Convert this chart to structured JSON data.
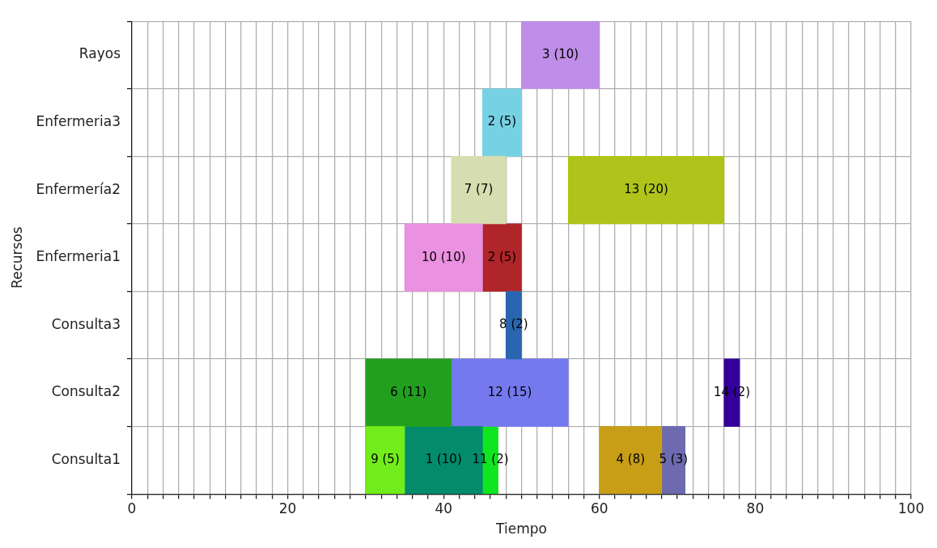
{
  "chart_data": {
    "type": "bar",
    "orientation": "horizontal",
    "xlabel": "Tiempo",
    "ylabel": "Recursos",
    "categories": [
      "Rayos",
      "Enfermeria3",
      "Enfermería2",
      "Enfermeria1",
      "Consulta3",
      "Consulta2",
      "Consulta1"
    ],
    "series": [
      {
        "values": [
          10,
          5,
          7,
          10,
          2,
          11,
          5
        ],
        "base": [
          50,
          45,
          41,
          35,
          48,
          30,
          30
        ],
        "colors": [
          "#be8ee8",
          "#76d1e3",
          "#d6ddb0",
          "#ea91e0",
          "#2a65b0",
          "#239f1f",
          "#72ec1a"
        ],
        "value_labels": [
          "3 (10)",
          "2 (5)",
          "7 (7)",
          "10 (10)",
          "8 (2)",
          "6 (11)",
          "9 (5)"
        ]
      },
      {
        "values": [
          null,
          null,
          20,
          5,
          null,
          15,
          10
        ],
        "base": [
          null,
          null,
          56,
          45,
          null,
          41,
          35
        ],
        "colors": [
          "#be8ee8",
          "#76d1e3",
          "#aec41a",
          "#b0252a",
          "#2a65b0",
          "#7579ee",
          "#038b6c"
        ],
        "value_labels": [
          null,
          null,
          "13 (20)",
          "2 (5)",
          null,
          "12 (15)",
          "1 (10)"
        ]
      },
      {
        "values": [
          null,
          null,
          null,
          null,
          null,
          2,
          2
        ],
        "base": [
          null,
          null,
          null,
          null,
          null,
          76,
          45
        ],
        "colors": [
          "#be8ee8",
          "#76d1e3",
          "#aec41a",
          "#b0252a",
          "#2a65b0",
          "#33009a",
          "#10e61f"
        ],
        "value_labels": [
          null,
          null,
          null,
          null,
          null,
          "14 (2)",
          "11 (2)"
        ]
      },
      {
        "values": [
          null,
          null,
          null,
          null,
          null,
          null,
          8
        ],
        "base": [
          null,
          null,
          null,
          null,
          null,
          null,
          60
        ],
        "colors": [
          "#be8ee8",
          "#76d1e3",
          "#aec41a",
          "#b0252a",
          "#2a65b0",
          "#33009a",
          "#c89e17"
        ],
        "value_labels": [
          null,
          null,
          null,
          null,
          null,
          null,
          "4 (8)"
        ]
      },
      {
        "values": [
          null,
          null,
          null,
          null,
          null,
          null,
          3
        ],
        "base": [
          null,
          null,
          null,
          null,
          null,
          null,
          68
        ],
        "colors": [
          "#be8ee8",
          "#76d1e3",
          "#aec41a",
          "#b0252a",
          "#2a65b0",
          "#33009a",
          "#6d6ab0"
        ],
        "value_labels": [
          null,
          null,
          null,
          null,
          null,
          null,
          "5 (3)"
        ]
      }
    ],
    "xlim": [
      0,
      100
    ],
    "xticks": [
      0,
      {
        "value": 2,
        "label": null
      },
      {
        "value": 4,
        "label": null
      },
      {
        "value": 6,
        "label": null
      },
      {
        "value": 8,
        "label": null
      },
      {
        "value": 10,
        "label": null
      },
      {
        "value": 12,
        "label": null
      },
      {
        "value": 14,
        "label": null
      },
      {
        "value": 16,
        "label": null
      },
      {
        "value": 18,
        "label": null
      },
      20,
      {
        "value": 22,
        "label": null
      },
      {
        "value": 24,
        "label": null
      },
      {
        "value": 26,
        "label": null
      },
      {
        "value": 28,
        "label": null
      },
      {
        "value": 30,
        "label": null
      },
      {
        "value": 32,
        "label": null
      },
      {
        "value": 34,
        "label": null
      },
      {
        "value": 36,
        "label": null
      },
      {
        "value": 38,
        "label": null
      },
      40,
      {
        "value": 42,
        "label": null
      },
      {
        "value": 44,
        "label": null
      },
      {
        "value": 46,
        "label": null
      },
      {
        "value": 48,
        "label": null
      },
      {
        "value": 50,
        "label": null
      },
      {
        "value": 52,
        "label": null
      },
      {
        "value": 54,
        "label": null
      },
      {
        "value": 56,
        "label": null
      },
      {
        "value": 58,
        "label": null
      },
      60,
      {
        "value": 62,
        "label": null
      },
      {
        "value": 64,
        "label": null
      },
      {
        "value": 66,
        "label": null
      },
      {
        "value": 68,
        "label": null
      },
      {
        "value": 70,
        "label": null
      },
      {
        "value": 72,
        "label": null
      },
      {
        "value": 74,
        "label": null
      },
      {
        "value": 76,
        "label": null
      },
      {
        "value": 78,
        "label": null
      },
      80,
      {
        "value": 82,
        "label": null
      },
      {
        "value": 84,
        "label": null
      },
      {
        "value": 86,
        "label": null
      },
      {
        "value": 88,
        "label": null
      },
      {
        "value": 90,
        "label": null
      },
      {
        "value": 92,
        "label": null
      },
      {
        "value": 94,
        "label": null
      },
      {
        "value": 96,
        "label": null
      },
      {
        "value": 98,
        "label": null
      },
      100
    ],
    "grid": true,
    "legend": false
  }
}
